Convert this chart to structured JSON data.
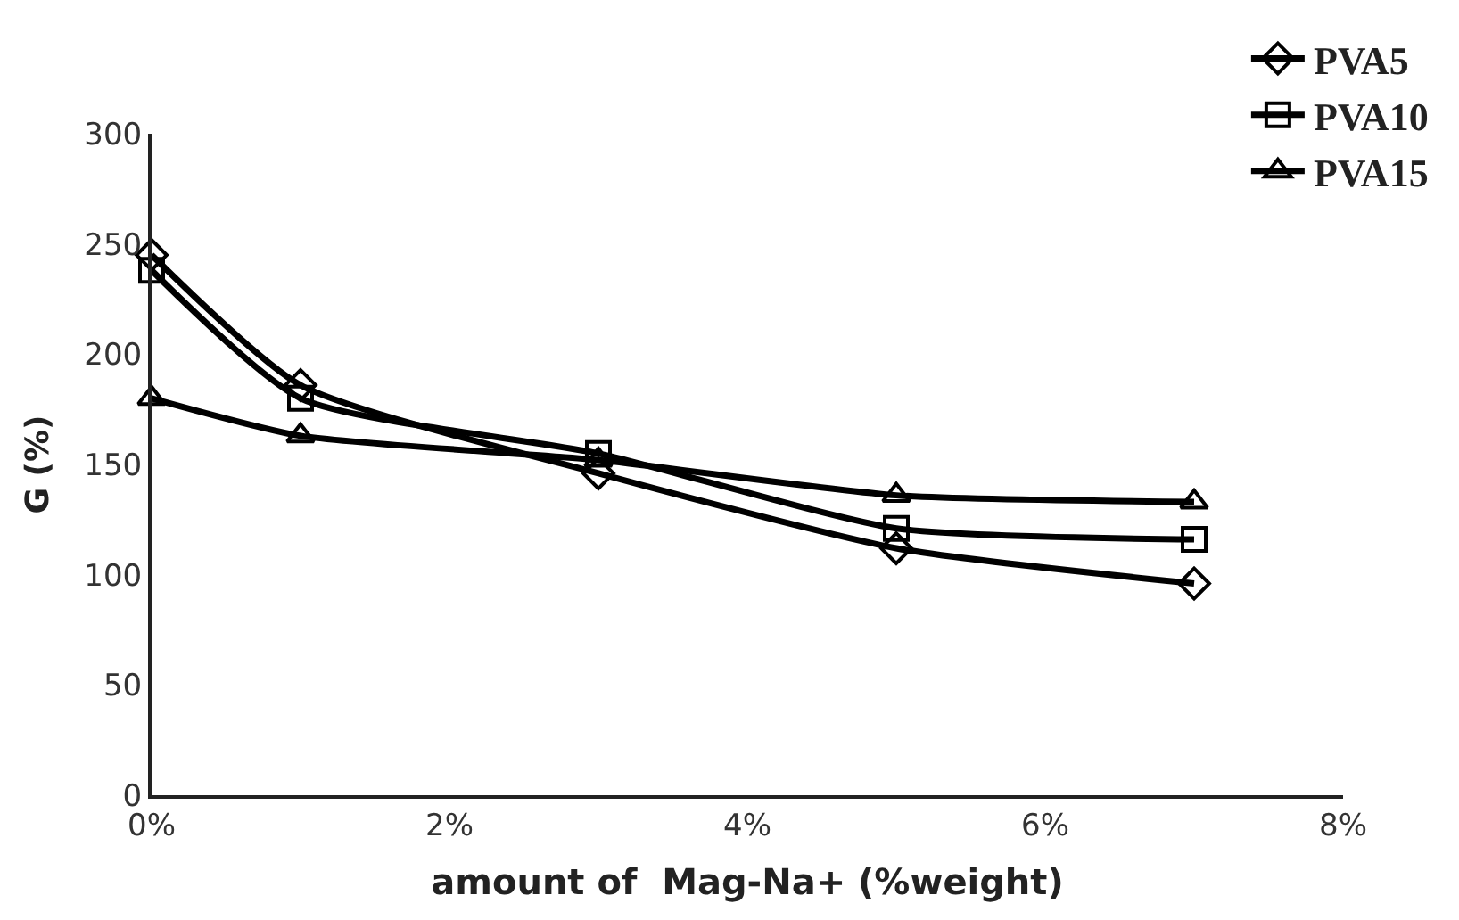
{
  "chart_data": {
    "type": "line",
    "xlabel": "amount of  Mag-Na+ (%weight)",
    "ylabel": "G (%)",
    "x": [
      0,
      1,
      3,
      5,
      7
    ],
    "series": [
      {
        "name": "PVA5",
        "color": "#000000",
        "marker": "diamond",
        "values": [
          245,
          186,
          146,
          112,
          96
        ]
      },
      {
        "name": "PVA10",
        "color": "#000000",
        "marker": "square",
        "values": [
          238,
          180,
          155,
          121,
          116
        ]
      },
      {
        "name": "PVA15",
        "color": "#000000",
        "marker": "triangle",
        "values": [
          180,
          163,
          152,
          136,
          133
        ]
      }
    ],
    "xlim": [
      0,
      8
    ],
    "xticks": [
      {
        "value": 0,
        "label": "0%"
      },
      {
        "value": 2,
        "label": "2%"
      },
      {
        "value": 4,
        "label": "4%"
      },
      {
        "value": 6,
        "label": "6%"
      },
      {
        "value": 8,
        "label": "8%"
      }
    ],
    "ylim": [
      0,
      300
    ],
    "yticks": [
      0,
      50,
      100,
      150,
      200,
      250,
      300
    ],
    "legend": "top right",
    "line_style": "solid"
  }
}
